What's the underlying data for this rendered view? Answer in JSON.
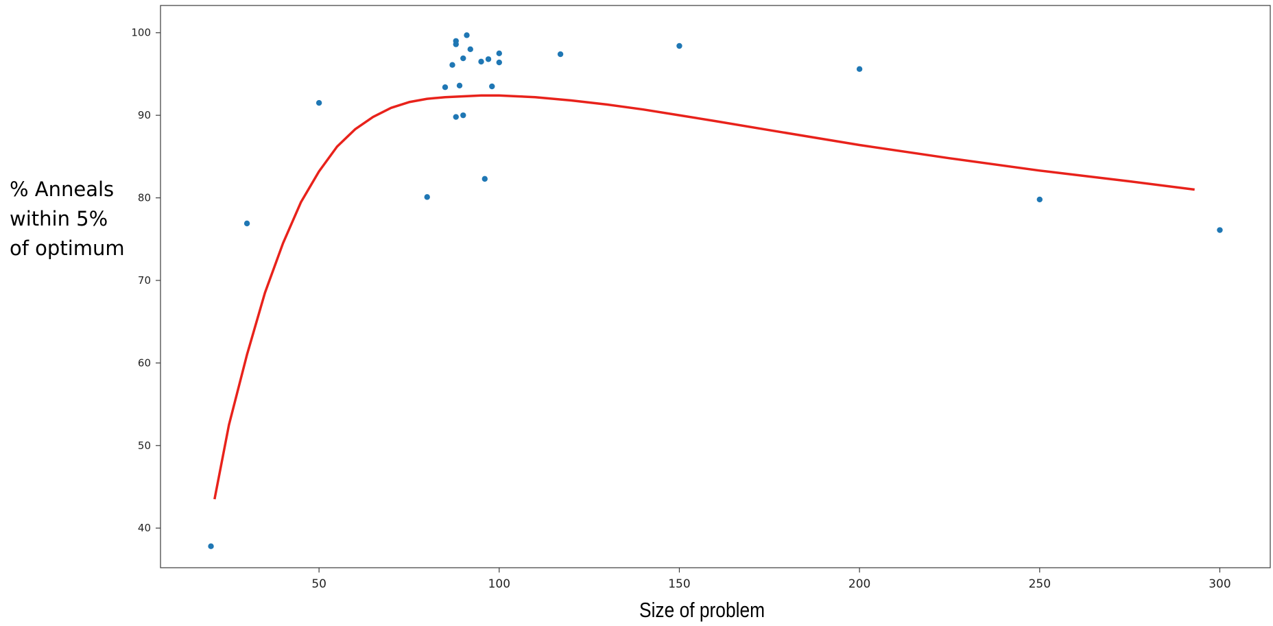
{
  "chart_data": {
    "type": "scatter",
    "title": "",
    "xlabel": "Size of problem",
    "ylabel": [
      "% Anneals",
      "within 5%",
      "of optimum"
    ],
    "xlim": [
      6,
      314
    ],
    "ylim": [
      35.2,
      103.3
    ],
    "xticks": [
      50,
      100,
      150,
      200,
      250,
      300
    ],
    "yticks": [
      40,
      50,
      60,
      70,
      80,
      90,
      100
    ],
    "grid": false,
    "legend": "none",
    "colors": {
      "points": "#1f77b4",
      "curve": "#e8221b"
    },
    "series": [
      {
        "kind": "scatter",
        "points": [
          [
            20,
            37.8
          ],
          [
            30,
            76.9
          ],
          [
            50,
            91.5
          ],
          [
            80,
            80.1
          ],
          [
            85,
            93.4
          ],
          [
            87,
            96.1
          ],
          [
            88,
            98.6
          ],
          [
            88,
            99.0
          ],
          [
            88,
            89.8
          ],
          [
            89,
            93.6
          ],
          [
            90,
            96.9
          ],
          [
            90,
            90.0
          ],
          [
            91,
            99.7
          ],
          [
            92,
            98.0
          ],
          [
            95,
            96.5
          ],
          [
            96,
            82.3
          ],
          [
            97,
            96.8
          ],
          [
            98,
            93.5
          ],
          [
            100,
            97.5
          ],
          [
            100,
            96.4
          ],
          [
            117,
            97.4
          ],
          [
            150,
            98.4
          ],
          [
            200,
            95.6
          ],
          [
            250,
            79.8
          ],
          [
            300,
            76.1
          ]
        ]
      },
      {
        "kind": "line",
        "points": [
          [
            21,
            43.5
          ],
          [
            25,
            52.5
          ],
          [
            30,
            61.0
          ],
          [
            35,
            68.5
          ],
          [
            40,
            74.5
          ],
          [
            45,
            79.5
          ],
          [
            50,
            83.2
          ],
          [
            55,
            86.2
          ],
          [
            60,
            88.3
          ],
          [
            65,
            89.8
          ],
          [
            70,
            90.9
          ],
          [
            75,
            91.6
          ],
          [
            80,
            92.0
          ],
          [
            85,
            92.2
          ],
          [
            90,
            92.3
          ],
          [
            95,
            92.4
          ],
          [
            100,
            92.4
          ],
          [
            105,
            92.3
          ],
          [
            110,
            92.2
          ],
          [
            120,
            91.8
          ],
          [
            130,
            91.3
          ],
          [
            140,
            90.7
          ],
          [
            150,
            90.0
          ],
          [
            160,
            89.3
          ],
          [
            175,
            88.2
          ],
          [
            200,
            86.4
          ],
          [
            225,
            84.8
          ],
          [
            250,
            83.3
          ],
          [
            275,
            82.0
          ],
          [
            293,
            81.0
          ]
        ]
      }
    ]
  }
}
